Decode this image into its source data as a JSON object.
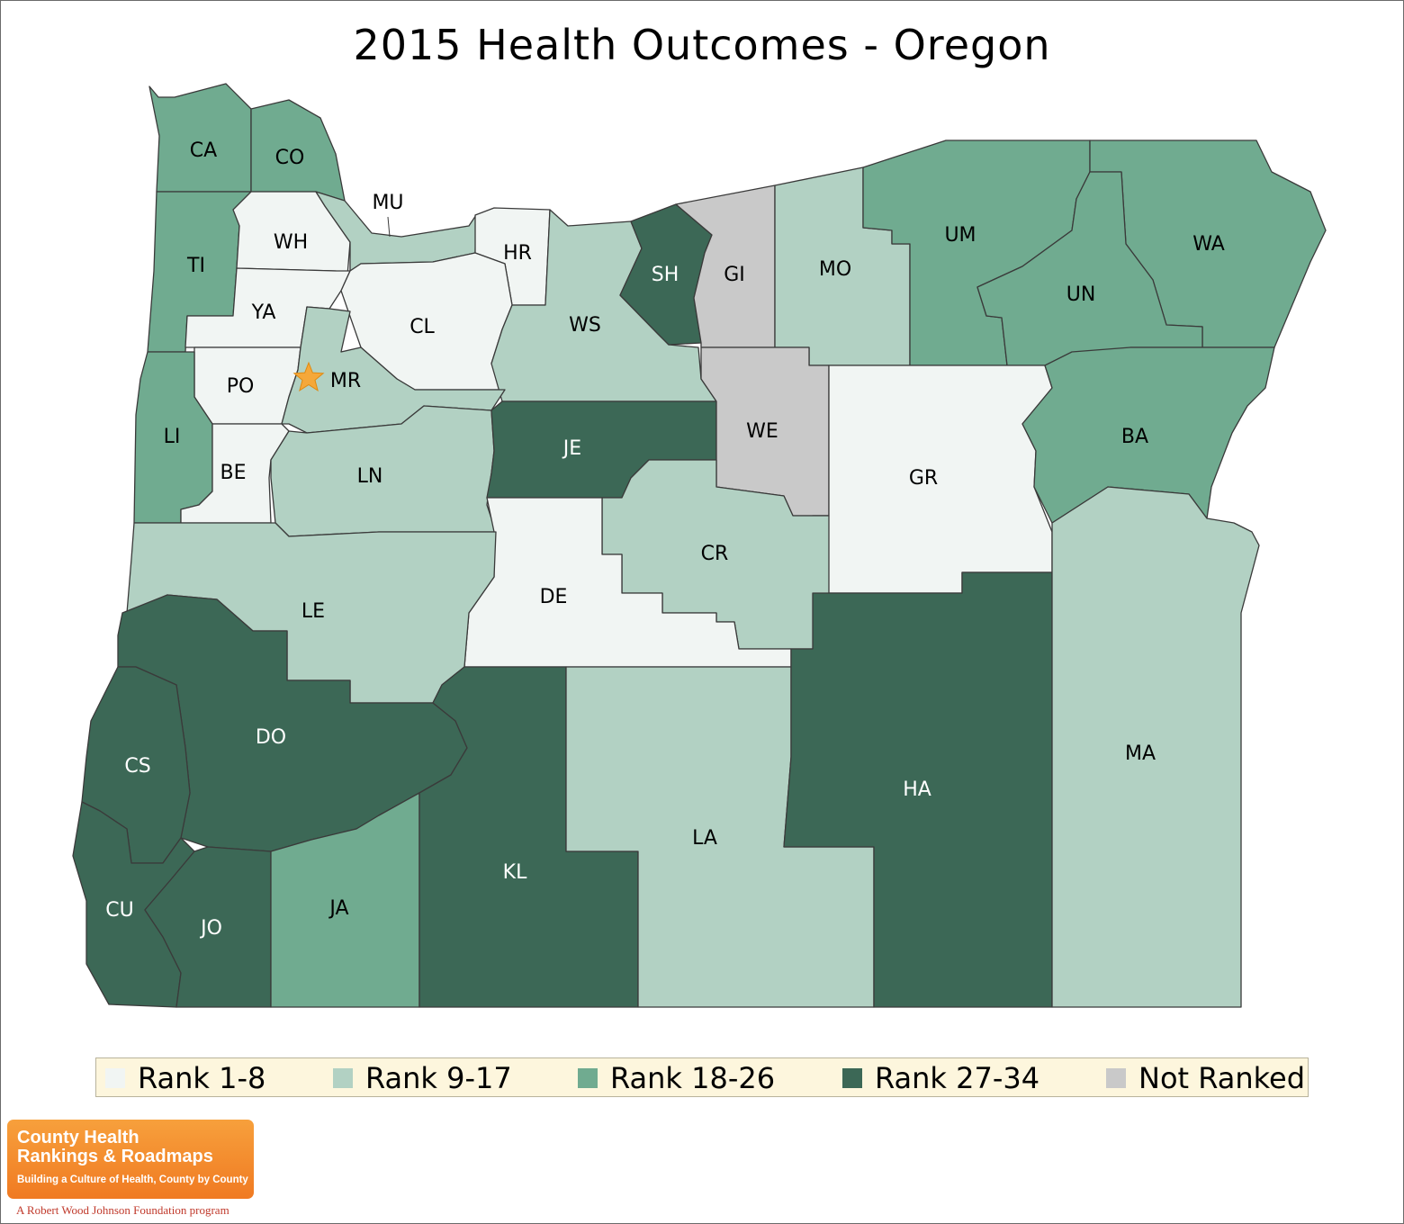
{
  "title": "2015 Health Outcomes - Oregon",
  "colors": {
    "rank_1_8": "#f1f5f3",
    "rank_9_17": "#b2d1c3",
    "rank_18_26": "#70ab90",
    "rank_27_34": "#3c6856",
    "not_ranked": "#c9c9c9"
  },
  "legend": [
    {
      "label": "Rank 1-8",
      "category": "rank_1_8"
    },
    {
      "label": "Rank 9-17",
      "category": "rank_9_17"
    },
    {
      "label": "Rank 18-26",
      "category": "rank_18_26"
    },
    {
      "label": "Rank 27-34",
      "category": "rank_27_34"
    },
    {
      "label": "Not Ranked",
      "category": "not_ranked"
    }
  ],
  "counties": [
    {
      "code": "CA",
      "category": "rank_18_26"
    },
    {
      "code": "CO",
      "category": "rank_18_26"
    },
    {
      "code": "TI",
      "category": "rank_18_26"
    },
    {
      "code": "WH",
      "category": "rank_1_8"
    },
    {
      "code": "MU",
      "category": "rank_9_17"
    },
    {
      "code": "HR",
      "category": "rank_1_8"
    },
    {
      "code": "YA",
      "category": "rank_1_8"
    },
    {
      "code": "CL",
      "category": "rank_1_8"
    },
    {
      "code": "WS",
      "category": "rank_9_17"
    },
    {
      "code": "SH",
      "category": "rank_27_34"
    },
    {
      "code": "GI",
      "category": "not_ranked"
    },
    {
      "code": "MO",
      "category": "rank_9_17"
    },
    {
      "code": "UM",
      "category": "rank_18_26"
    },
    {
      "code": "WA",
      "category": "rank_18_26"
    },
    {
      "code": "UN",
      "category": "rank_18_26"
    },
    {
      "code": "PO",
      "category": "rank_1_8"
    },
    {
      "code": "MR",
      "category": "rank_9_17"
    },
    {
      "code": "LI",
      "category": "rank_18_26"
    },
    {
      "code": "BE",
      "category": "rank_1_8"
    },
    {
      "code": "LN",
      "category": "rank_9_17"
    },
    {
      "code": "JE",
      "category": "rank_27_34"
    },
    {
      "code": "WE",
      "category": "not_ranked"
    },
    {
      "code": "GR",
      "category": "rank_1_8"
    },
    {
      "code": "BA",
      "category": "rank_18_26"
    },
    {
      "code": "CR",
      "category": "rank_9_17"
    },
    {
      "code": "DE",
      "category": "rank_1_8"
    },
    {
      "code": "LE",
      "category": "rank_9_17"
    },
    {
      "code": "DO",
      "category": "rank_27_34"
    },
    {
      "code": "CS",
      "category": "rank_27_34"
    },
    {
      "code": "CU",
      "category": "rank_27_34"
    },
    {
      "code": "JO",
      "category": "rank_27_34"
    },
    {
      "code": "JA",
      "category": "rank_18_26"
    },
    {
      "code": "KL",
      "category": "rank_27_34"
    },
    {
      "code": "LA",
      "category": "rank_9_17"
    },
    {
      "code": "HA",
      "category": "rank_27_34"
    },
    {
      "code": "MA",
      "category": "rank_9_17"
    }
  ],
  "capital_marker": "star-icon",
  "logo": {
    "line1": "County Health",
    "line2": "Rankings & Roadmaps",
    "line3": "Building a Culture of Health, County by County",
    "footer": "A Robert Wood Johnson Foundation program"
  }
}
